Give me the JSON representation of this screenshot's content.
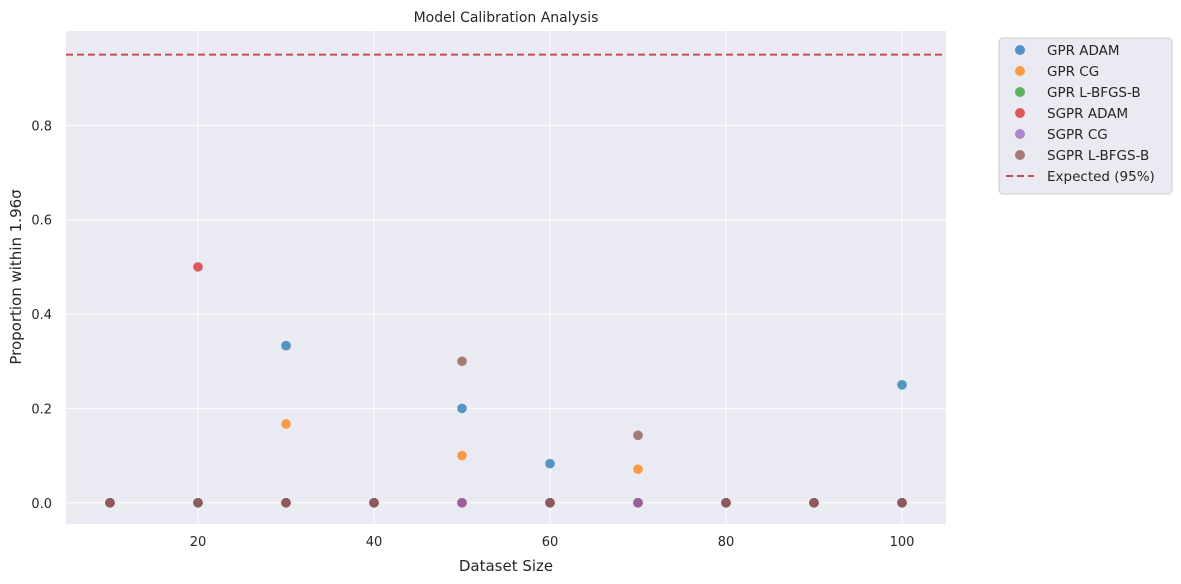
{
  "chart_data": {
    "type": "scatter",
    "title": "Model Calibration Analysis",
    "xlabel": "Dataset Size",
    "ylabel": "Proportion within 1.96σ",
    "xlim": [
      5,
      105
    ],
    "ylim": [
      -0.045,
      1.0
    ],
    "xticks": [
      20,
      40,
      60,
      80,
      100
    ],
    "yticks": [
      0.0,
      0.2,
      0.4,
      0.6,
      0.8
    ],
    "ytick_labels": [
      "0.0",
      "0.2",
      "0.4",
      "0.6",
      "0.8"
    ],
    "grid": true,
    "legend_position": "outside top-right",
    "series": [
      {
        "name": "GPR ADAM",
        "color": "#1f77b4",
        "points": [
          [
            10,
            0
          ],
          [
            20,
            0
          ],
          [
            30,
            0.333
          ],
          [
            40,
            0
          ],
          [
            50,
            0.2
          ],
          [
            60,
            0.083
          ],
          [
            70,
            0
          ],
          [
            80,
            0
          ],
          [
            90,
            0
          ],
          [
            100,
            0.25
          ]
        ]
      },
      {
        "name": "GPR CG",
        "color": "#ff7f0e",
        "points": [
          [
            10,
            0
          ],
          [
            20,
            0
          ],
          [
            30,
            0.167
          ],
          [
            40,
            0
          ],
          [
            50,
            0.1
          ],
          [
            60,
            0
          ],
          [
            70,
            0.071
          ],
          [
            80,
            0
          ],
          [
            90,
            0
          ],
          [
            100,
            0
          ]
        ]
      },
      {
        "name": "GPR L-BFGS-B",
        "color": "#2ca02c",
        "points": [
          [
            10,
            0
          ],
          [
            20,
            0
          ],
          [
            30,
            0
          ],
          [
            40,
            0
          ],
          [
            50,
            0
          ],
          [
            60,
            0
          ],
          [
            70,
            0
          ],
          [
            80,
            0
          ],
          [
            90,
            0
          ],
          [
            100,
            0
          ]
        ]
      },
      {
        "name": "SGPR ADAM",
        "color": "#d62728",
        "points": [
          [
            10,
            0
          ],
          [
            20,
            0.5
          ],
          [
            30,
            0
          ],
          [
            40,
            0
          ],
          [
            50,
            0
          ],
          [
            60,
            0
          ],
          [
            70,
            0
          ],
          [
            80,
            0
          ],
          [
            90,
            0
          ],
          [
            100,
            0
          ]
        ]
      },
      {
        "name": "SGPR CG",
        "color": "#9467bd",
        "points": [
          [
            10,
            0
          ],
          [
            20,
            0
          ],
          [
            30,
            0
          ],
          [
            40,
            0
          ],
          [
            50,
            0
          ],
          [
            60,
            0
          ],
          [
            70,
            0
          ],
          [
            80,
            0
          ],
          [
            90,
            0
          ],
          [
            100,
            0
          ]
        ]
      },
      {
        "name": "SGPR L-BFGS-B",
        "color": "#8c564b",
        "points": [
          [
            10,
            0
          ],
          [
            20,
            0
          ],
          [
            30,
            0
          ],
          [
            40,
            0
          ],
          [
            50,
            0.3
          ],
          [
            60,
            0
          ],
          [
            70,
            0.143
          ],
          [
            80,
            0
          ],
          [
            90,
            0
          ],
          [
            100,
            0
          ]
        ]
      }
    ],
    "reference_line": {
      "name": "Expected (95%)",
      "y": 0.95,
      "color": "#c44e52",
      "style": "dashed"
    }
  },
  "style": {
    "plot_background": "#eaeaf2",
    "grid_color": "#ffffff",
    "text_color": "#262626"
  }
}
